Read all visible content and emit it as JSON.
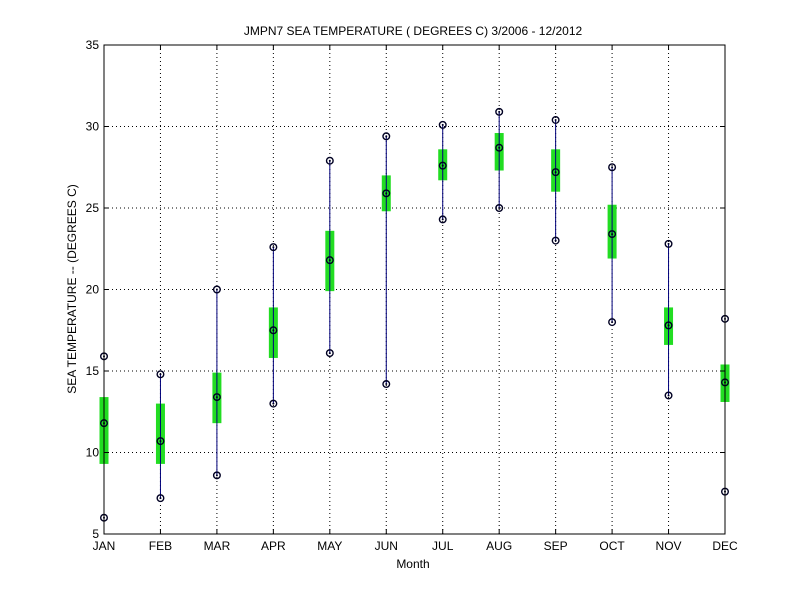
{
  "chart_data": {
    "type": "box",
    "title": "JMPN7  SEA TEMPERATURE ( DEGREES C) 3/2006 - 12/2012",
    "xlabel": "Month",
    "ylabel": "SEA TEMPERATURE -- (DEGREES C)",
    "ylim": [
      5,
      35
    ],
    "yticks": [
      5,
      10,
      15,
      20,
      25,
      30,
      35
    ],
    "grid": true,
    "categories": [
      "JAN",
      "FEB",
      "MAR",
      "APR",
      "MAY",
      "JUN",
      "JUL",
      "AUG",
      "SEP",
      "OCT",
      "NOV",
      "DEC"
    ],
    "min": [
      6.0,
      7.2,
      8.6,
      13.0,
      16.1,
      14.2,
      24.3,
      25.0,
      23.0,
      18.0,
      13.5,
      7.6
    ],
    "q1": [
      9.3,
      9.3,
      11.8,
      15.8,
      19.9,
      24.8,
      26.7,
      27.3,
      26.0,
      21.9,
      16.6,
      13.1
    ],
    "median": [
      11.8,
      10.7,
      13.4,
      17.5,
      21.8,
      25.9,
      27.6,
      28.7,
      27.2,
      23.4,
      17.8,
      14.3
    ],
    "q3": [
      13.4,
      13.0,
      14.9,
      18.9,
      23.6,
      27.0,
      28.6,
      29.6,
      28.6,
      25.2,
      18.9,
      15.4
    ],
    "max": [
      15.9,
      14.8,
      20.0,
      22.6,
      27.9,
      29.4,
      30.1,
      30.9,
      30.4,
      27.5,
      22.8,
      18.2
    ],
    "colors": {
      "box": "#22dd22",
      "whisker": "#00007a",
      "marker": "#000022"
    }
  }
}
